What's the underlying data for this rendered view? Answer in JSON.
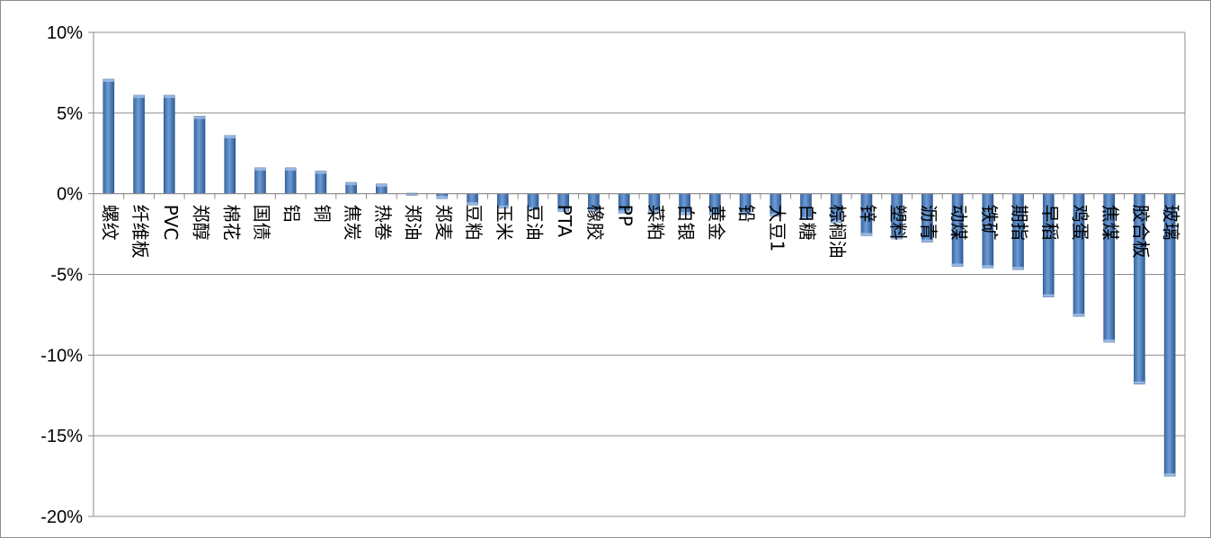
{
  "chart_data": {
    "type": "bar",
    "title": "",
    "xlabel": "",
    "ylabel": "",
    "ylim": [
      -0.2,
      0.1
    ],
    "yticks": [
      0.1,
      0.05,
      0.0,
      -0.05,
      -0.1,
      -0.15,
      -0.2
    ],
    "ytick_labels": [
      "10%",
      "5%",
      "0%",
      "-5%",
      "-10%",
      "-15%",
      "-20%"
    ],
    "grid": true,
    "legend": "none",
    "bar_color": "#4f81bd",
    "categories": [
      "螺纹",
      "纤维板",
      "PVC",
      "郑醇",
      "棉花",
      "国债",
      "铝",
      "铜",
      "焦炭",
      "热卷",
      "郑油",
      "郑麦",
      "豆粕",
      "玉米",
      "豆油",
      "PTA",
      "橡胶",
      "PP",
      "菜粕",
      "白银",
      "黄金",
      "铅",
      "大豆1",
      "白糖",
      "棕榈油",
      "锌",
      "塑料",
      "沥青",
      "动煤",
      "铁矿",
      "期指",
      "早稻",
      "鸡蛋",
      "焦煤",
      "胶合板",
      "玻璃"
    ],
    "values": [
      0.071,
      0.061,
      0.061,
      0.048,
      0.036,
      0.016,
      0.016,
      0.014,
      0.007,
      0.006,
      -0.001,
      -0.003,
      -0.007,
      -0.009,
      -0.01,
      -0.011,
      -0.011,
      -0.012,
      -0.012,
      -0.013,
      -0.013,
      -0.013,
      -0.014,
      -0.016,
      -0.018,
      -0.026,
      -0.028,
      -0.03,
      -0.045,
      -0.046,
      -0.047,
      -0.064,
      -0.076,
      -0.092,
      -0.118,
      -0.175
    ]
  }
}
